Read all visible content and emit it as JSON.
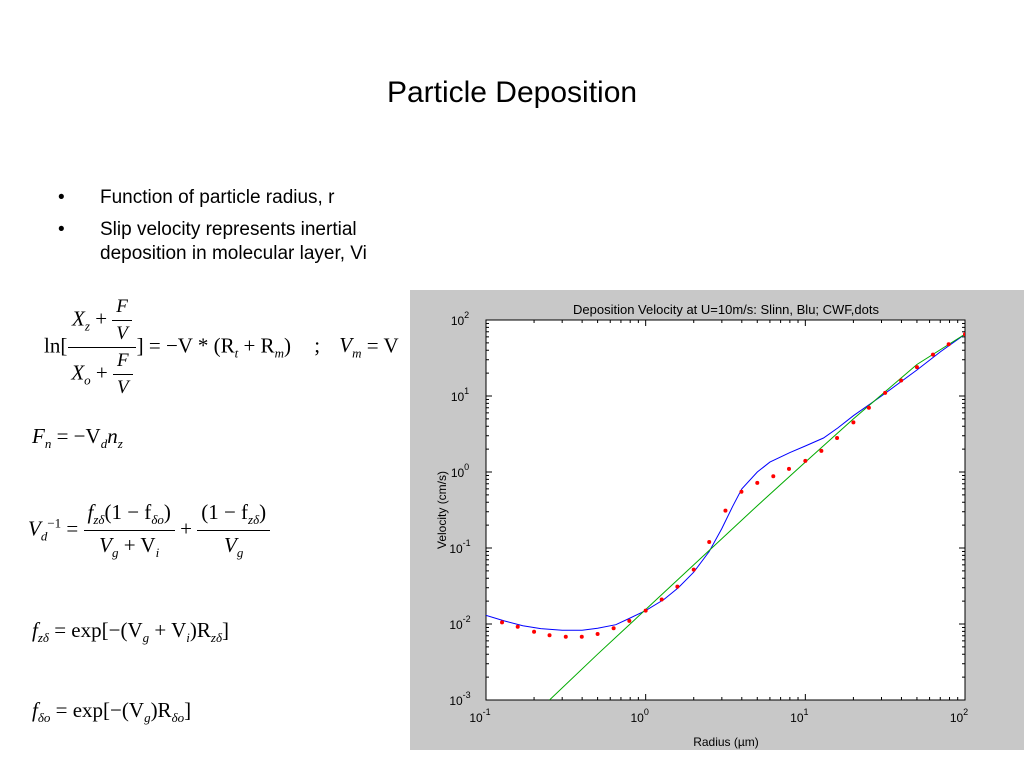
{
  "slide": {
    "title": "Particle Deposition",
    "bullets": [
      {
        "marker": "•",
        "text": "Function of particle radius, r"
      },
      {
        "marker": "•",
        "text": "Slip velocity represents inertial deposition in molecular layer, Vi"
      }
    ]
  },
  "equations": {
    "eq1": {
      "ln": "ln[",
      "xz": "X",
      "xz_sub": "z",
      "xo": "X",
      "xo_sub": "o",
      "plus": "+",
      "F": "F",
      "V": "V",
      "rhs": "] = −V * (R",
      "rt_sub": "t",
      "plus2": " + R",
      "rm_sub": "m",
      "close": ")",
      "sep": ";",
      "vm": "V",
      "vm_sub": "m",
      "vm_eq": "= V"
    },
    "eq2": {
      "lhs": "F",
      "lhs_sub": "n",
      "rhs": "= −V",
      "rhs_sub": "d",
      "n": "n",
      "n_sub": "z"
    },
    "eq3": {
      "lhs": "V",
      "lhs_sub": "d",
      "lhs_sup": "−1",
      "eq": "=",
      "num1": "f",
      "num1_sub": "zδ",
      "num1_rest": "(1 − f",
      "num1_sub2": "δo",
      "num1_close": ")",
      "den1": "V",
      "den1_sub": "g",
      "den1_plus": " + V",
      "den1_sub2": "i",
      "plus": "+",
      "num2": "(1 − f",
      "num2_sub": "zδ",
      "num2_close": ")",
      "den2": "V",
      "den2_sub": "g"
    },
    "eq4": {
      "lhs": "f",
      "lhs_sub": "zδ",
      "rhs": "= exp[−(V",
      "g_sub": "g",
      "plus": " + V",
      "i_sub": "i",
      "mid": ")R",
      "r_sub": "zδ",
      "close": "]"
    },
    "eq5": {
      "lhs": "f",
      "lhs_sub": "δo",
      "rhs": "= exp[−(V",
      "g_sub": "g",
      "mid": ")R",
      "r_sub": "δo",
      "close": "]"
    }
  },
  "chart_data": {
    "type": "line",
    "title": "Deposition Velocity at U=10m/s: Slinn, Blu; CWF,dots",
    "xlabel": "Radius (µm)",
    "ylabel": "Velocity (cm/s)",
    "xscale": "log",
    "yscale": "log",
    "xlim": [
      0.1,
      100
    ],
    "ylim": [
      0.001,
      100
    ],
    "x_ticks": [
      {
        "base": "10",
        "exp": "-1"
      },
      {
        "base": "10",
        "exp": "0"
      },
      {
        "base": "10",
        "exp": "1"
      },
      {
        "base": "10",
        "exp": "2"
      }
    ],
    "y_ticks": [
      {
        "base": "10",
        "exp": "-3"
      },
      {
        "base": "10",
        "exp": "-2"
      },
      {
        "base": "10",
        "exp": "-1"
      },
      {
        "base": "10",
        "exp": "0"
      },
      {
        "base": "10",
        "exp": "1"
      },
      {
        "base": "10",
        "exp": "2"
      }
    ],
    "grid": false,
    "series": [
      {
        "color": "#0000ff",
        "style": "line",
        "x": [
          0.1,
          0.13,
          0.17,
          0.22,
          0.3,
          0.4,
          0.5,
          0.65,
          0.8,
          1.0,
          1.3,
          1.6,
          2.0,
          2.5,
          3.0,
          3.5,
          4.0,
          5.0,
          6.0,
          8.0,
          10,
          13,
          16,
          20,
          30,
          50,
          70,
          100
        ],
        "y": [
          0.013,
          0.011,
          0.0095,
          0.0087,
          0.0083,
          0.0083,
          0.0088,
          0.0098,
          0.012,
          0.015,
          0.021,
          0.03,
          0.048,
          0.09,
          0.18,
          0.35,
          0.6,
          1.0,
          1.35,
          1.8,
          2.2,
          2.8,
          3.8,
          5.5,
          10,
          22,
          38,
          65
        ]
      },
      {
        "color": "#00aa00",
        "style": "line",
        "x": [
          0.25,
          0.5,
          1.0,
          2.0,
          5.0,
          10,
          20,
          50,
          100
        ],
        "y": [
          0.001,
          0.004,
          0.0155,
          0.06,
          0.36,
          1.35,
          5.0,
          26,
          65
        ]
      },
      {
        "color": "#ff0000",
        "style": "dots",
        "x": [
          0.126,
          0.158,
          0.2,
          0.25,
          0.316,
          0.398,
          0.5,
          0.63,
          0.79,
          1.0,
          1.26,
          1.58,
          2.0,
          2.5,
          3.16,
          3.98,
          5.0,
          6.3,
          7.9,
          10,
          12.6,
          15.8,
          20,
          25,
          31.6,
          39.8,
          50,
          63,
          79,
          100
        ],
        "y": [
          0.0105,
          0.0092,
          0.0079,
          0.0071,
          0.0068,
          0.0068,
          0.0074,
          0.0088,
          0.011,
          0.015,
          0.021,
          0.031,
          0.052,
          0.12,
          0.31,
          0.55,
          0.72,
          0.88,
          1.1,
          1.4,
          1.9,
          2.8,
          4.5,
          7.0,
          11,
          16,
          24,
          35,
          48,
          65
        ]
      }
    ]
  }
}
